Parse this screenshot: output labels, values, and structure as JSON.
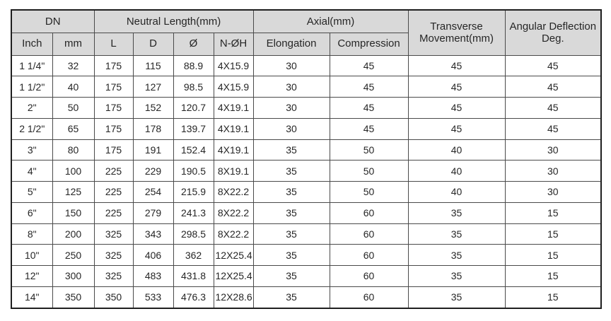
{
  "colors": {
    "header_bg": "#d9d9d9",
    "outer_border": "#1f1f1f",
    "inner_border": "#4a4a4a",
    "text": "#262626"
  },
  "table": {
    "header": {
      "dn": "DN",
      "neutral_length": "Neutral Length(mm)",
      "axial": "Axial(mm)",
      "transverse_movement": "Transverse Movement(mm)",
      "angular_deflection": "Angular Deflection Deg.",
      "sub": {
        "inch": "Inch",
        "mm": "mm",
        "l": "L",
        "d": "D",
        "diameter": "Ø",
        "n_oh": "N-ØH",
        "elongation": "Elongation",
        "compression": "Compression"
      }
    },
    "rows": [
      [
        "1 1/4\"",
        "32",
        "175",
        "115",
        "88.9",
        "4X15.9",
        "30",
        "45",
        "45",
        "45"
      ],
      [
        "1 1/2\"",
        "40",
        "175",
        "127",
        "98.5",
        "4X15.9",
        "30",
        "45",
        "45",
        "45"
      ],
      [
        "2\"",
        "50",
        "175",
        "152",
        "120.7",
        "4X19.1",
        "30",
        "45",
        "45",
        "45"
      ],
      [
        "2 1/2\"",
        "65",
        "175",
        "178",
        "139.7",
        "4X19.1",
        "30",
        "45",
        "45",
        "45"
      ],
      [
        "3\"",
        "80",
        "175",
        "191",
        "152.4",
        "4X19.1",
        "35",
        "50",
        "40",
        "30"
      ],
      [
        "4\"",
        "100",
        "225",
        "229",
        "190.5",
        "8X19.1",
        "35",
        "50",
        "40",
        "30"
      ],
      [
        "5\"",
        "125",
        "225",
        "254",
        "215.9",
        "8X22.2",
        "35",
        "50",
        "40",
        "30"
      ],
      [
        "6\"",
        "150",
        "225",
        "279",
        "241.3",
        "8X22.2",
        "35",
        "60",
        "35",
        "15"
      ],
      [
        "8\"",
        "200",
        "325",
        "343",
        "298.5",
        "8X22.2",
        "35",
        "60",
        "35",
        "15"
      ],
      [
        "10\"",
        "250",
        "325",
        "406",
        "362",
        "12X25.4",
        "35",
        "60",
        "35",
        "15"
      ],
      [
        "12\"",
        "300",
        "325",
        "483",
        "431.8",
        "12X25.4",
        "35",
        "60",
        "35",
        "15"
      ],
      [
        "14\"",
        "350",
        "350",
        "533",
        "476.3",
        "12X28.6",
        "35",
        "60",
        "35",
        "15"
      ]
    ]
  }
}
